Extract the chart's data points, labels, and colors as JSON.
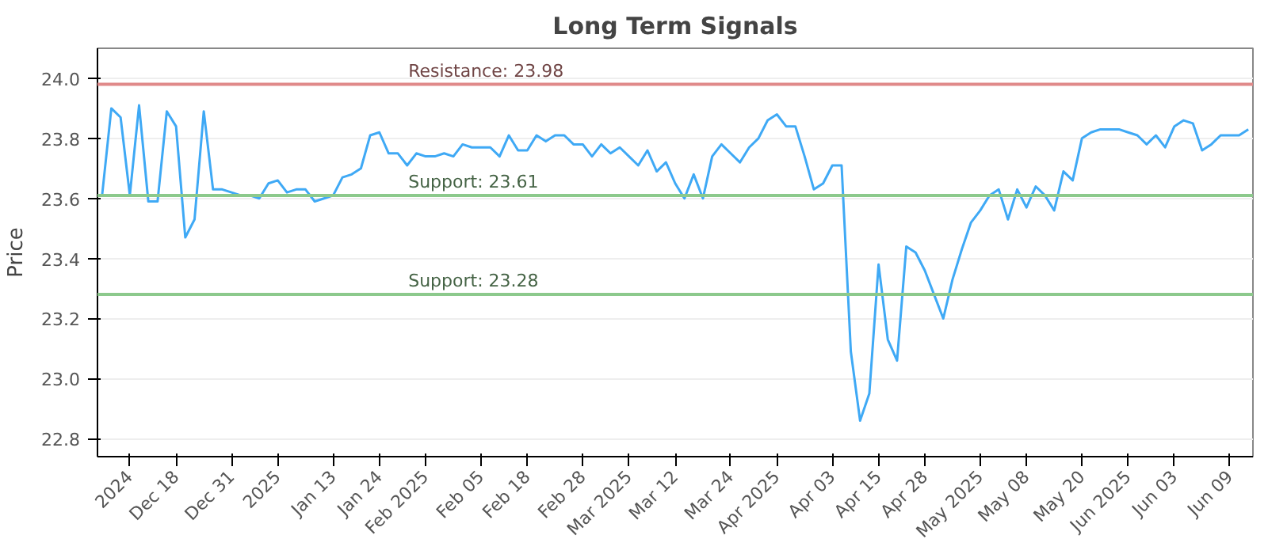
{
  "chart_data": {
    "type": "line",
    "title": "Long Term Signals",
    "ylabel": "Price",
    "categories": [
      null,
      null,
      null,
      "2024",
      null,
      null,
      null,
      null,
      "Dec 18",
      null,
      null,
      null,
      null,
      null,
      "Dec 31",
      null,
      null,
      null,
      null,
      "2025",
      null,
      null,
      null,
      null,
      null,
      "Jan 13",
      null,
      null,
      null,
      null,
      "Jan 24",
      null,
      null,
      null,
      null,
      "Feb 2025",
      null,
      null,
      null,
      null,
      null,
      "Feb 05",
      null,
      null,
      null,
      null,
      "Feb 18",
      null,
      null,
      null,
      null,
      null,
      "Feb 28",
      null,
      null,
      null,
      null,
      "Mar 2025",
      null,
      null,
      null,
      null,
      "Mar 12",
      null,
      null,
      null,
      null,
      null,
      "Mar 24",
      null,
      null,
      null,
      null,
      "Apr 2025",
      null,
      null,
      null,
      null,
      null,
      "Apr 03",
      null,
      null,
      null,
      null,
      "Apr 15",
      null,
      null,
      null,
      null,
      "Apr 28",
      null,
      null,
      null,
      null,
      null,
      "May 2025",
      null,
      null,
      null,
      null,
      "May 08",
      null,
      null,
      null,
      null,
      null,
      "May 20",
      null,
      null,
      null,
      null,
      "Jun 2025",
      null,
      null,
      null,
      null,
      "Jun 03",
      null,
      null,
      null,
      null,
      null,
      "Jun 09",
      null,
      null
    ],
    "series": [
      {
        "color": "#3fa9f5",
        "values": [
          23.61,
          23.9,
          23.87,
          23.61,
          23.91,
          23.59,
          23.59,
          23.89,
          23.84,
          23.47,
          23.53,
          23.89,
          23.63,
          23.63,
          23.62,
          23.61,
          23.61,
          23.6,
          23.65,
          23.66,
          23.62,
          23.63,
          23.63,
          23.59,
          23.6,
          23.61,
          23.67,
          23.68,
          23.7,
          23.81,
          23.82,
          23.75,
          23.75,
          23.71,
          23.75,
          23.74,
          23.74,
          23.75,
          23.74,
          23.78,
          23.77,
          23.77,
          23.77,
          23.74,
          23.81,
          23.76,
          23.76,
          23.81,
          23.79,
          23.81,
          23.81,
          23.78,
          23.78,
          23.74,
          23.78,
          23.75,
          23.77,
          23.74,
          23.71,
          23.76,
          23.69,
          23.72,
          23.65,
          23.6,
          23.68,
          23.6,
          23.74,
          23.78,
          23.75,
          23.72,
          23.77,
          23.8,
          23.86,
          23.88,
          23.84,
          23.84,
          23.74,
          23.63,
          23.65,
          23.71,
          23.71,
          23.09,
          22.86,
          22.95,
          23.38,
          23.13,
          23.06,
          23.44,
          23.42,
          23.36,
          23.28,
          23.2,
          23.33,
          23.43,
          23.52,
          23.56,
          23.61,
          23.63,
          23.53,
          23.63,
          23.57,
          23.64,
          23.61,
          23.56,
          23.69,
          23.66,
          23.8,
          23.82,
          23.83,
          23.83,
          23.83,
          23.82,
          23.81,
          23.78,
          23.81,
          23.77,
          23.84,
          23.86,
          23.85,
          23.76,
          23.78,
          23.81,
          23.81,
          23.81,
          23.83
        ]
      }
    ],
    "ylim": [
      22.74,
      24.1
    ],
    "yticks": [
      {
        "value": 22.8,
        "label": "22.8"
      },
      {
        "value": 23.0,
        "label": "23.0"
      },
      {
        "value": 23.2,
        "label": "23.2"
      },
      {
        "value": 23.4,
        "label": "23.4"
      },
      {
        "value": 23.6,
        "label": "23.6"
      },
      {
        "value": 23.8,
        "label": "23.8"
      },
      {
        "value": 24.0,
        "label": "24.0"
      }
    ],
    "ref_lines": [
      {
        "axis": "y",
        "value": 23.98,
        "label": "Resistance: 23.98",
        "color": "#e08a8a"
      },
      {
        "axis": "y",
        "value": 23.61,
        "label": "Support: 23.61",
        "color": "#8cc98c"
      },
      {
        "axis": "y",
        "value": 23.28,
        "label": "Support: 23.28",
        "color": "#8cc98c"
      }
    ],
    "grid": "y",
    "marker": "none",
    "line_style": "solid"
  }
}
